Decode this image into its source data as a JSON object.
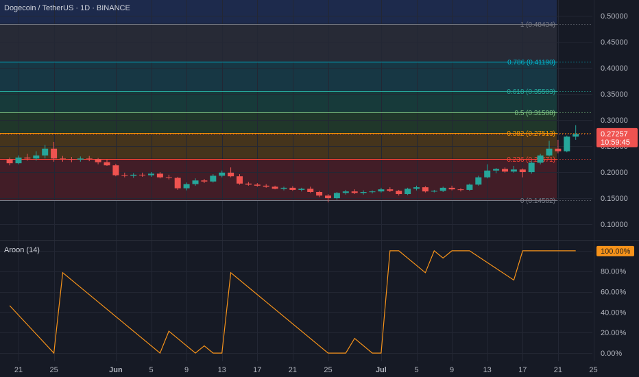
{
  "header": {
    "title": "Dogecoin / TetherUS · 1D · BINANCE"
  },
  "indicator": {
    "title": "Aroon (14)"
  },
  "colors": {
    "background": "#161a25",
    "up": "#26a69a",
    "down": "#ef5350",
    "aroon": "#f7931a",
    "text": "#b2b5be"
  },
  "chart_data": [
    {
      "type": "candlestick",
      "title": "Dogecoin / TetherUS · 1D · BINANCE",
      "ylim": [
        0.07,
        0.53
      ],
      "y_ticks": [
        0.5,
        0.45,
        0.4,
        0.35,
        0.3,
        0.25,
        0.2,
        0.15,
        0.1
      ],
      "y_tick_labels": [
        "0.50000",
        "0.45000",
        "0.40000",
        "0.35000",
        "0.30000",
        "0.25000",
        "0.20000",
        "0.15000",
        "0.10000"
      ],
      "x_axis_labels": [
        "21",
        "25",
        "Jun",
        "5",
        "9",
        "13",
        "17",
        "21",
        "25",
        "Jul",
        "5",
        "9",
        "13",
        "17",
        "21",
        "25"
      ],
      "x_axis_label_days": [
        0,
        4,
        11,
        15,
        19,
        23,
        27,
        31,
        35,
        41,
        45,
        49,
        53,
        57,
        61,
        65
      ],
      "fib_levels": [
        {
          "label": "1 (0.48434)",
          "value": 0.48434,
          "color": "#787b86",
          "fill": "#2a2e39"
        },
        {
          "label": "0.786 (0.41190)",
          "value": 0.4119,
          "color": "#00bcd4",
          "fill": "#173d4a"
        },
        {
          "label": "0.618 (0.35503)",
          "value": 0.35503,
          "color": "#26a69a",
          "fill": "#17413e"
        },
        {
          "label": "0.5 (0.31508)",
          "value": 0.31508,
          "color": "#81c784",
          "fill": "#223d2c"
        },
        {
          "label": "0.382 (0.27513)",
          "value": 0.27513,
          "color": "#ff9800",
          "fill": "#4e3a1b"
        },
        {
          "label": "0.236 (0.22571)",
          "value": 0.22571,
          "color": "#f44336",
          "fill": "#4a1f28"
        },
        {
          "label": "0 (0.14582)",
          "value": 0.14582,
          "color": "#787b86",
          "fill": null
        }
      ],
      "last_price": {
        "value": 0.27257,
        "label": "0.27257",
        "countdown": "10:59:45"
      },
      "candles": [
        [
          -1,
          0.225,
          0.228,
          0.213,
          0.217
        ],
        [
          0,
          0.217,
          0.232,
          0.215,
          0.228
        ],
        [
          1,
          0.228,
          0.235,
          0.222,
          0.226
        ],
        [
          2,
          0.226,
          0.24,
          0.222,
          0.232
        ],
        [
          3,
          0.232,
          0.252,
          0.226,
          0.245
        ],
        [
          4,
          0.245,
          0.258,
          0.22,
          0.226
        ],
        [
          5,
          0.226,
          0.231,
          0.22,
          0.225
        ],
        [
          6,
          0.225,
          0.229,
          0.219,
          0.224
        ],
        [
          7,
          0.224,
          0.23,
          0.22,
          0.226
        ],
        [
          8,
          0.226,
          0.231,
          0.221,
          0.225
        ],
        [
          9,
          0.225,
          0.227,
          0.215,
          0.219
        ],
        [
          10,
          0.219,
          0.224,
          0.212,
          0.213
        ],
        [
          11,
          0.213,
          0.216,
          0.192,
          0.194
        ],
        [
          12,
          0.194,
          0.199,
          0.19,
          0.193
        ],
        [
          13,
          0.193,
          0.198,
          0.189,
          0.195
        ],
        [
          14,
          0.195,
          0.199,
          0.191,
          0.194
        ],
        [
          15,
          0.194,
          0.2,
          0.191,
          0.197
        ],
        [
          16,
          0.197,
          0.2,
          0.188,
          0.19
        ],
        [
          17,
          0.19,
          0.195,
          0.186,
          0.189
        ],
        [
          18,
          0.189,
          0.191,
          0.166,
          0.169
        ],
        [
          19,
          0.169,
          0.18,
          0.165,
          0.177
        ],
        [
          20,
          0.177,
          0.188,
          0.174,
          0.184
        ],
        [
          21,
          0.184,
          0.187,
          0.179,
          0.182
        ],
        [
          22,
          0.182,
          0.196,
          0.18,
          0.193
        ],
        [
          23,
          0.193,
          0.203,
          0.19,
          0.199
        ],
        [
          24,
          0.199,
          0.209,
          0.19,
          0.192
        ],
        [
          25,
          0.192,
          0.196,
          0.176,
          0.178
        ],
        [
          26,
          0.178,
          0.181,
          0.174,
          0.176
        ],
        [
          27,
          0.176,
          0.179,
          0.172,
          0.174
        ],
        [
          28,
          0.174,
          0.177,
          0.17,
          0.172
        ],
        [
          29,
          0.172,
          0.174,
          0.167,
          0.168
        ],
        [
          30,
          0.168,
          0.172,
          0.165,
          0.17
        ],
        [
          31,
          0.17,
          0.173,
          0.164,
          0.166
        ],
        [
          32,
          0.166,
          0.17,
          0.163,
          0.168
        ],
        [
          33,
          0.168,
          0.172,
          0.16,
          0.162
        ],
        [
          34,
          0.162,
          0.164,
          0.152,
          0.155
        ],
        [
          35,
          0.155,
          0.158,
          0.142,
          0.15
        ],
        [
          36,
          0.15,
          0.162,
          0.147,
          0.16
        ],
        [
          37,
          0.16,
          0.166,
          0.157,
          0.163
        ],
        [
          38,
          0.163,
          0.167,
          0.158,
          0.16
        ],
        [
          39,
          0.16,
          0.165,
          0.157,
          0.162
        ],
        [
          40,
          0.162,
          0.165,
          0.159,
          0.163
        ],
        [
          41,
          0.163,
          0.17,
          0.161,
          0.167
        ],
        [
          42,
          0.167,
          0.171,
          0.162,
          0.164
        ],
        [
          43,
          0.164,
          0.166,
          0.155,
          0.158
        ],
        [
          44,
          0.158,
          0.17,
          0.156,
          0.168
        ],
        [
          45,
          0.168,
          0.174,
          0.165,
          0.171
        ],
        [
          46,
          0.171,
          0.173,
          0.161,
          0.163
        ],
        [
          47,
          0.163,
          0.166,
          0.161,
          0.164
        ],
        [
          48,
          0.164,
          0.172,
          0.162,
          0.17
        ],
        [
          49,
          0.17,
          0.174,
          0.165,
          0.167
        ],
        [
          50,
          0.167,
          0.169,
          0.163,
          0.166
        ],
        [
          51,
          0.166,
          0.178,
          0.164,
          0.176
        ],
        [
          52,
          0.176,
          0.193,
          0.174,
          0.19
        ],
        [
          53,
          0.19,
          0.215,
          0.188,
          0.203
        ],
        [
          54,
          0.203,
          0.208,
          0.198,
          0.206
        ],
        [
          55,
          0.206,
          0.209,
          0.199,
          0.201
        ],
        [
          56,
          0.201,
          0.212,
          0.199,
          0.205
        ],
        [
          57,
          0.205,
          0.207,
          0.19,
          0.2
        ],
        [
          58,
          0.2,
          0.222,
          0.197,
          0.218
        ],
        [
          59,
          0.218,
          0.235,
          0.215,
          0.232
        ],
        [
          60,
          0.232,
          0.26,
          0.23,
          0.245
        ],
        [
          61,
          0.245,
          0.262,
          0.236,
          0.24
        ],
        [
          62,
          0.24,
          0.27,
          0.238,
          0.268
        ],
        [
          63,
          0.268,
          0.29,
          0.262,
          0.273
        ]
      ]
    },
    {
      "type": "line",
      "title": "Aroon (14)",
      "ylim": [
        -8,
        110
      ],
      "y_ticks": [
        100,
        80,
        60,
        40,
        20,
        0
      ],
      "y_tick_labels": [
        "100.00%",
        "80.00%",
        "60.00%",
        "40.00%",
        "20.00%",
        "0.00%"
      ],
      "current_value": {
        "value": 100,
        "label": "100.00%"
      },
      "series": [
        {
          "points": [
            [
              -1,
              46.4
            ],
            [
              4,
              0
            ],
            [
              5,
              78.6
            ],
            [
              16,
              0
            ],
            [
              17,
              21.4
            ],
            [
              20,
              0
            ],
            [
              21,
              7.1
            ],
            [
              22,
              0
            ],
            [
              23,
              0
            ],
            [
              24,
              78.6
            ],
            [
              35,
              0
            ],
            [
              37,
              0
            ],
            [
              38,
              14.3
            ],
            [
              40,
              0
            ],
            [
              41,
              0
            ],
            [
              42,
              100
            ],
            [
              43,
              100
            ],
            [
              46,
              78.6
            ],
            [
              47,
              100
            ],
            [
              48,
              92.9
            ],
            [
              49,
              100
            ],
            [
              51,
              100
            ],
            [
              56,
              71.4
            ],
            [
              57,
              100
            ],
            [
              63,
              100
            ]
          ]
        }
      ]
    }
  ]
}
